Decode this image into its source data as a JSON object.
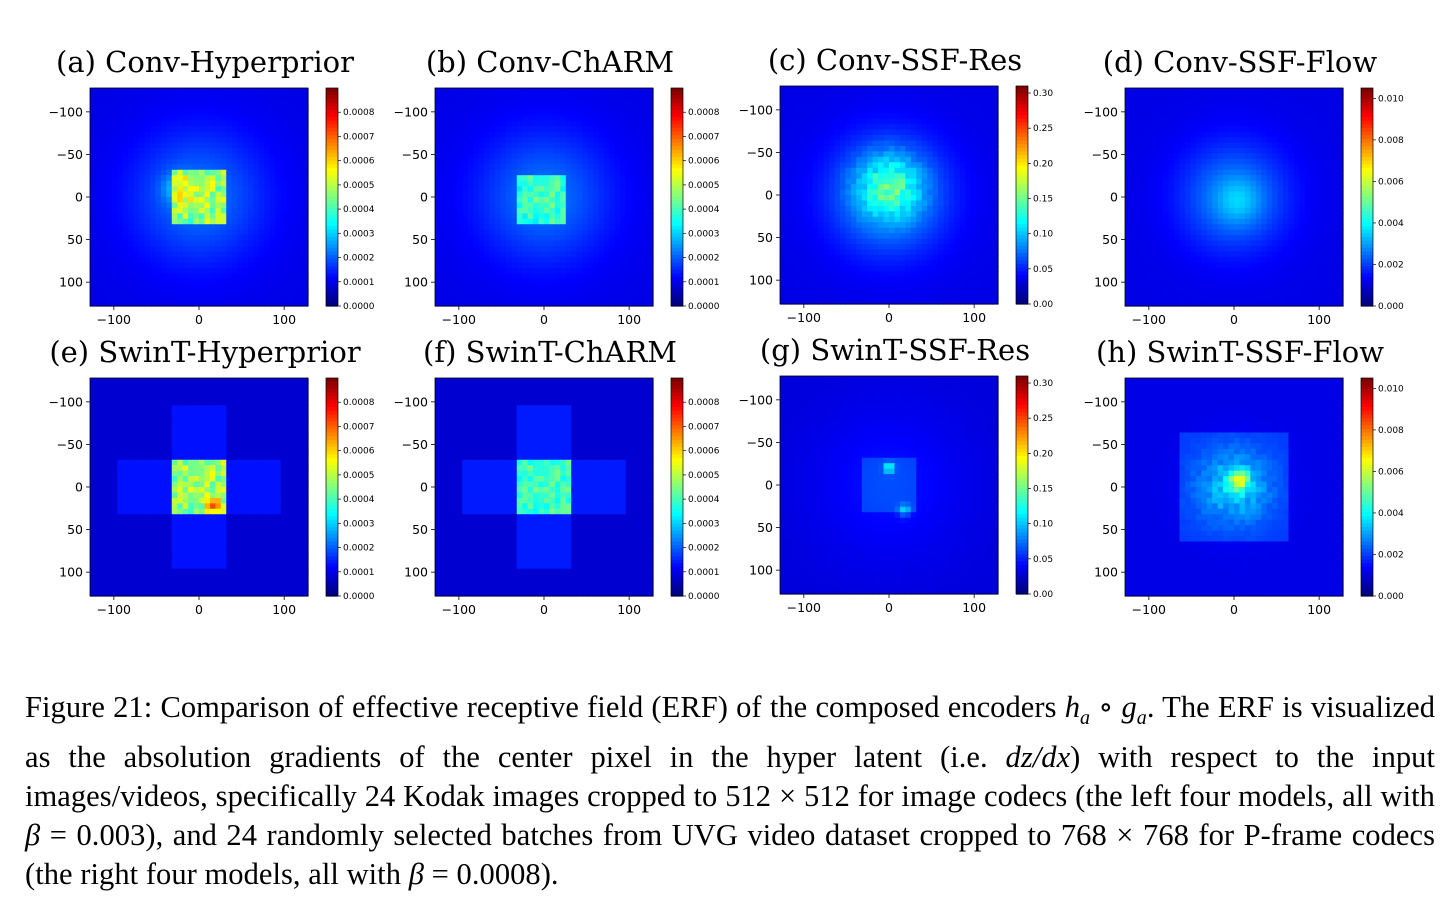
{
  "figure": {
    "panels": [
      {
        "title": "(a) Conv-Hyperprior",
        "pattern": "conv-hyper",
        "cbar_max": 0.0009,
        "cbar_ticks": [
          "0.0000",
          "0.0001",
          "0.0002",
          "0.0003",
          "0.0004",
          "0.0005",
          "0.0006",
          "0.0007",
          "0.0008"
        ]
      },
      {
        "title": "(b) Conv-ChARM",
        "pattern": "conv-charm",
        "cbar_max": 0.0009,
        "cbar_ticks": [
          "0.0000",
          "0.0001",
          "0.0002",
          "0.0003",
          "0.0004",
          "0.0005",
          "0.0006",
          "0.0007",
          "0.0008"
        ]
      },
      {
        "title": "(c) Conv-SSF-Res",
        "pattern": "conv-ssf-res",
        "cbar_max": 0.31,
        "cbar_ticks": [
          "0.00",
          "0.05",
          "0.10",
          "0.15",
          "0.20",
          "0.25",
          "0.30"
        ]
      },
      {
        "title": "(d) Conv-SSF-Flow",
        "pattern": "conv-ssf-flow",
        "cbar_max": 0.0105,
        "cbar_ticks": [
          "0.000",
          "0.002",
          "0.004",
          "0.006",
          "0.008",
          "0.010"
        ]
      },
      {
        "title": "(e) SwinT-Hyperprior",
        "pattern": "swin-hyper",
        "cbar_max": 0.0009,
        "cbar_ticks": [
          "0.0000",
          "0.0001",
          "0.0002",
          "0.0003",
          "0.0004",
          "0.0005",
          "0.0006",
          "0.0007",
          "0.0008"
        ]
      },
      {
        "title": "(f) SwinT-ChARM",
        "pattern": "swin-charm",
        "cbar_max": 0.0009,
        "cbar_ticks": [
          "0.0000",
          "0.0001",
          "0.0002",
          "0.0003",
          "0.0004",
          "0.0005",
          "0.0006",
          "0.0007",
          "0.0008"
        ]
      },
      {
        "title": "(g) SwinT-SSF-Res",
        "pattern": "swin-ssf-res",
        "cbar_max": 0.31,
        "cbar_ticks": [
          "0.00",
          "0.05",
          "0.10",
          "0.15",
          "0.20",
          "0.25",
          "0.30"
        ]
      },
      {
        "title": "(h) SwinT-SSF-Flow",
        "pattern": "swin-ssf-flow",
        "cbar_max": 0.0105,
        "cbar_ticks": [
          "0.000",
          "0.002",
          "0.004",
          "0.006",
          "0.008",
          "0.010"
        ]
      }
    ],
    "axis": {
      "x_ticks": [
        "−100",
        "0",
        "100"
      ],
      "y_ticks": [
        "−100",
        "−50",
        "0",
        "50",
        "100"
      ]
    },
    "colormap": "jet"
  },
  "caption": {
    "t1": "Figure 21: Comparison of effective receptive field (ERF) of the composed encoders ",
    "m1": "h",
    "m1sub": "a",
    "m1op": " ∘ ",
    "m2": "g",
    "m2sub": "a",
    "t2": ". The ERF is visualized as the absolution gradients of the center pixel in the hyper latent (i.e. ",
    "m3": "dz/dx",
    "t3": ") with respect to the input images/videos, specifically 24 Kodak images cropped to ",
    "m4": "512 × 512",
    "t4": " for image codecs (the left four models, all with ",
    "m5": "β",
    "m5b": " = 0.003",
    "t5": "), and 24 randomly selected batches from UVG video dataset cropped to ",
    "m6": "768 × 768",
    "t6": " for P-frame codecs (the right four models, all with ",
    "m7": "β",
    "m7b": " = 0.0008",
    "t7": ")."
  }
}
